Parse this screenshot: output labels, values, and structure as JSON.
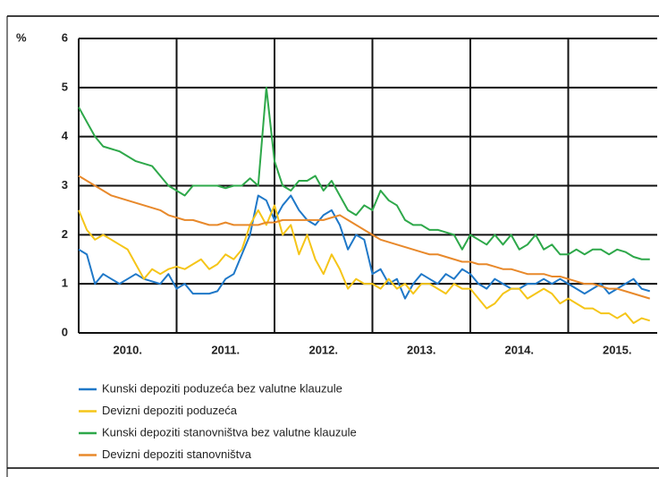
{
  "chart_data": {
    "type": "line",
    "y_label": "%",
    "categories": [
      null,
      null,
      null,
      null,
      null,
      null,
      "2010.",
      null,
      null,
      null,
      null,
      null,
      null,
      null,
      null,
      null,
      null,
      null,
      "2011.",
      null,
      null,
      null,
      null,
      null,
      null,
      null,
      null,
      null,
      null,
      null,
      "2012.",
      null,
      null,
      null,
      null,
      null,
      null,
      null,
      null,
      null,
      null,
      null,
      "2013.",
      null,
      null,
      null,
      null,
      null,
      null,
      null,
      null,
      null,
      null,
      null,
      "2014.",
      null,
      null,
      null,
      null,
      null,
      null,
      null,
      null,
      null,
      null,
      null,
      "2015.",
      null,
      null,
      null,
      null
    ],
    "ylim": [
      0,
      6
    ],
    "yticks": [
      0,
      1,
      2,
      3,
      4,
      5,
      6
    ],
    "grid": true,
    "series": [
      {
        "name": "Kunski depoziti poduzeća bez valutne klauzule",
        "color": "#1f78c8",
        "values": [
          1.7,
          1.6,
          1.0,
          1.2,
          1.1,
          1.0,
          1.1,
          1.2,
          1.1,
          1.05,
          1.0,
          1.2,
          0.9,
          1.0,
          0.8,
          0.8,
          0.8,
          0.85,
          1.1,
          1.2,
          1.6,
          2.0,
          2.8,
          2.7,
          2.3,
          2.6,
          2.8,
          2.5,
          2.3,
          2.2,
          2.4,
          2.5,
          2.2,
          1.7,
          2.0,
          1.9,
          1.2,
          1.3,
          1.0,
          1.1,
          0.7,
          1.0,
          1.2,
          1.1,
          1.0,
          1.2,
          1.1,
          1.3,
          1.2,
          1.0,
          0.9,
          1.1,
          1.0,
          0.9,
          0.9,
          1.0,
          1.0,
          1.1,
          1.0,
          1.1,
          1.0,
          0.9,
          0.8,
          0.9,
          1.0,
          0.8,
          0.9,
          1.0,
          1.1,
          0.9,
          0.85
        ]
      },
      {
        "name": "Devizni depoziti poduzeća",
        "color": "#f5c518",
        "values": [
          2.5,
          2.1,
          1.9,
          2.0,
          1.9,
          1.8,
          1.7,
          1.4,
          1.1,
          1.3,
          1.2,
          1.3,
          1.35,
          1.3,
          1.4,
          1.5,
          1.3,
          1.4,
          1.6,
          1.5,
          1.7,
          2.2,
          2.5,
          2.2,
          2.6,
          2.0,
          2.2,
          1.6,
          2.0,
          1.5,
          1.2,
          1.6,
          1.3,
          0.9,
          1.1,
          1.0,
          1.0,
          0.9,
          1.1,
          0.9,
          1.0,
          0.8,
          1.0,
          1.0,
          0.9,
          0.8,
          1.0,
          0.9,
          0.9,
          0.7,
          0.5,
          0.6,
          0.8,
          0.9,
          0.9,
          0.7,
          0.8,
          0.9,
          0.8,
          0.6,
          0.7,
          0.6,
          0.5,
          0.5,
          0.4,
          0.4,
          0.3,
          0.4,
          0.2,
          0.3,
          0.25
        ]
      },
      {
        "name": "Kunski depoziti stanovništva bez valutne klauzule",
        "color": "#2ea84a",
        "values": [
          4.6,
          4.3,
          4.0,
          3.8,
          3.75,
          3.7,
          3.6,
          3.5,
          3.45,
          3.4,
          3.2,
          3.0,
          2.9,
          2.8,
          3.0,
          3.0,
          3.0,
          3.0,
          2.95,
          3.0,
          3.0,
          3.15,
          3.0,
          5.0,
          3.5,
          3.0,
          2.9,
          3.1,
          3.1,
          3.2,
          2.9,
          3.1,
          2.8,
          2.5,
          2.4,
          2.6,
          2.5,
          2.9,
          2.7,
          2.6,
          2.3,
          2.2,
          2.2,
          2.1,
          2.1,
          2.05,
          2.0,
          1.7,
          2.0,
          1.9,
          1.8,
          2.0,
          1.8,
          2.0,
          1.7,
          1.8,
          2.0,
          1.7,
          1.8,
          1.6,
          1.6,
          1.7,
          1.6,
          1.7,
          1.7,
          1.6,
          1.7,
          1.65,
          1.55,
          1.5,
          1.5
        ]
      },
      {
        "name": "Devizni depoziti stanovništva",
        "color": "#e8892b",
        "values": [
          3.2,
          3.1,
          3.0,
          2.9,
          2.8,
          2.75,
          2.7,
          2.65,
          2.6,
          2.55,
          2.5,
          2.4,
          2.35,
          2.3,
          2.3,
          2.25,
          2.2,
          2.2,
          2.25,
          2.2,
          2.2,
          2.2,
          2.2,
          2.25,
          2.25,
          2.3,
          2.3,
          2.3,
          2.3,
          2.3,
          2.3,
          2.35,
          2.4,
          2.3,
          2.2,
          2.1,
          2.0,
          1.9,
          1.85,
          1.8,
          1.75,
          1.7,
          1.65,
          1.6,
          1.6,
          1.55,
          1.5,
          1.45,
          1.45,
          1.4,
          1.4,
          1.35,
          1.3,
          1.3,
          1.25,
          1.2,
          1.2,
          1.2,
          1.15,
          1.15,
          1.1,
          1.05,
          1.0,
          1.0,
          0.95,
          0.9,
          0.9,
          0.85,
          0.8,
          0.75,
          0.7
        ]
      }
    ]
  }
}
